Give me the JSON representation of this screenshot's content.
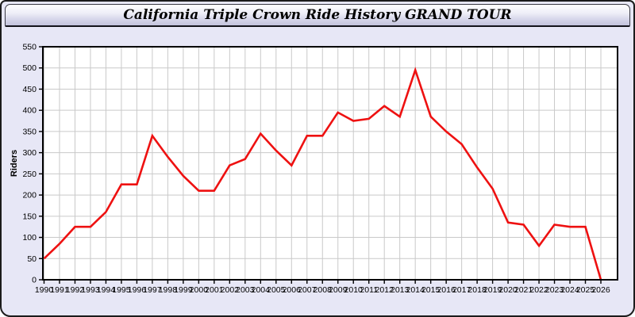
{
  "window": {
    "title": "California Triple Crown Ride History GRAND TOUR"
  },
  "chart_data": {
    "type": "line",
    "title": "California Triple Crown Ride History GRAND TOUR",
    "xlabel": "",
    "ylabel": "Riders",
    "categories": [
      1990,
      1991,
      1992,
      1993,
      1994,
      1995,
      1996,
      1997,
      1998,
      1999,
      2000,
      2001,
      2002,
      2003,
      2004,
      2005,
      2006,
      2007,
      2008,
      2009,
      2010,
      2011,
      2012,
      2013,
      2014,
      2015,
      2016,
      2017,
      2018,
      2019,
      2020,
      2021,
      2022,
      2023,
      2024,
      2025,
      2026
    ],
    "values": [
      50,
      85,
      125,
      125,
      160,
      225,
      225,
      340,
      290,
      245,
      210,
      210,
      270,
      285,
      345,
      305,
      270,
      340,
      340,
      395,
      375,
      380,
      410,
      385,
      495,
      385,
      350,
      320,
      265,
      215,
      135,
      130,
      80,
      130,
      125,
      125,
      0
    ],
    "ylim": [
      0,
      550
    ],
    "ytick_step": 50,
    "grid": true,
    "legend": "none",
    "colors": {
      "line": "#ee1111",
      "grid": "#c9c9c9",
      "plot_background": "#ffffff",
      "panel_background": "#e7e7f6",
      "axis": "#000000",
      "text": "#000000"
    }
  }
}
